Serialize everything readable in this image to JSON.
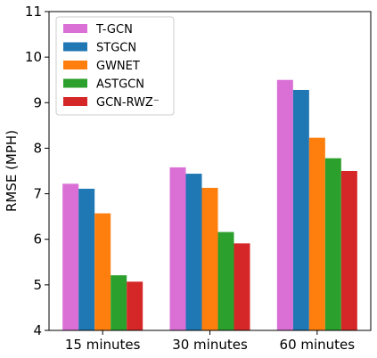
{
  "chart_data": {
    "type": "bar",
    "categories": [
      "15 minutes",
      "30 minutes",
      "60 minutes"
    ],
    "series": [
      {
        "name": "T-GCN",
        "color": "#da70d6",
        "values": [
          7.22,
          7.58,
          9.5
        ]
      },
      {
        "name": "STGCN",
        "color": "#1f77b4",
        "values": [
          7.11,
          7.44,
          9.28
        ]
      },
      {
        "name": "GWNET",
        "color": "#ff7f0e",
        "values": [
          6.57,
          7.13,
          8.23
        ]
      },
      {
        "name": "ASTGCN",
        "color": "#2ca02c",
        "values": [
          5.21,
          6.16,
          7.78
        ]
      },
      {
        "name": "GCN-RWZ⁻",
        "color": "#d62728",
        "values": [
          5.07,
          5.91,
          7.5
        ]
      }
    ],
    "xlabel": "",
    "ylabel": "RMSE (MPH)",
    "ylim": [
      4,
      11
    ],
    "yticks": [
      "4",
      "5",
      "6",
      "7",
      "8",
      "9",
      "10",
      "11"
    ],
    "grid": false,
    "legend_position": "top-left"
  }
}
